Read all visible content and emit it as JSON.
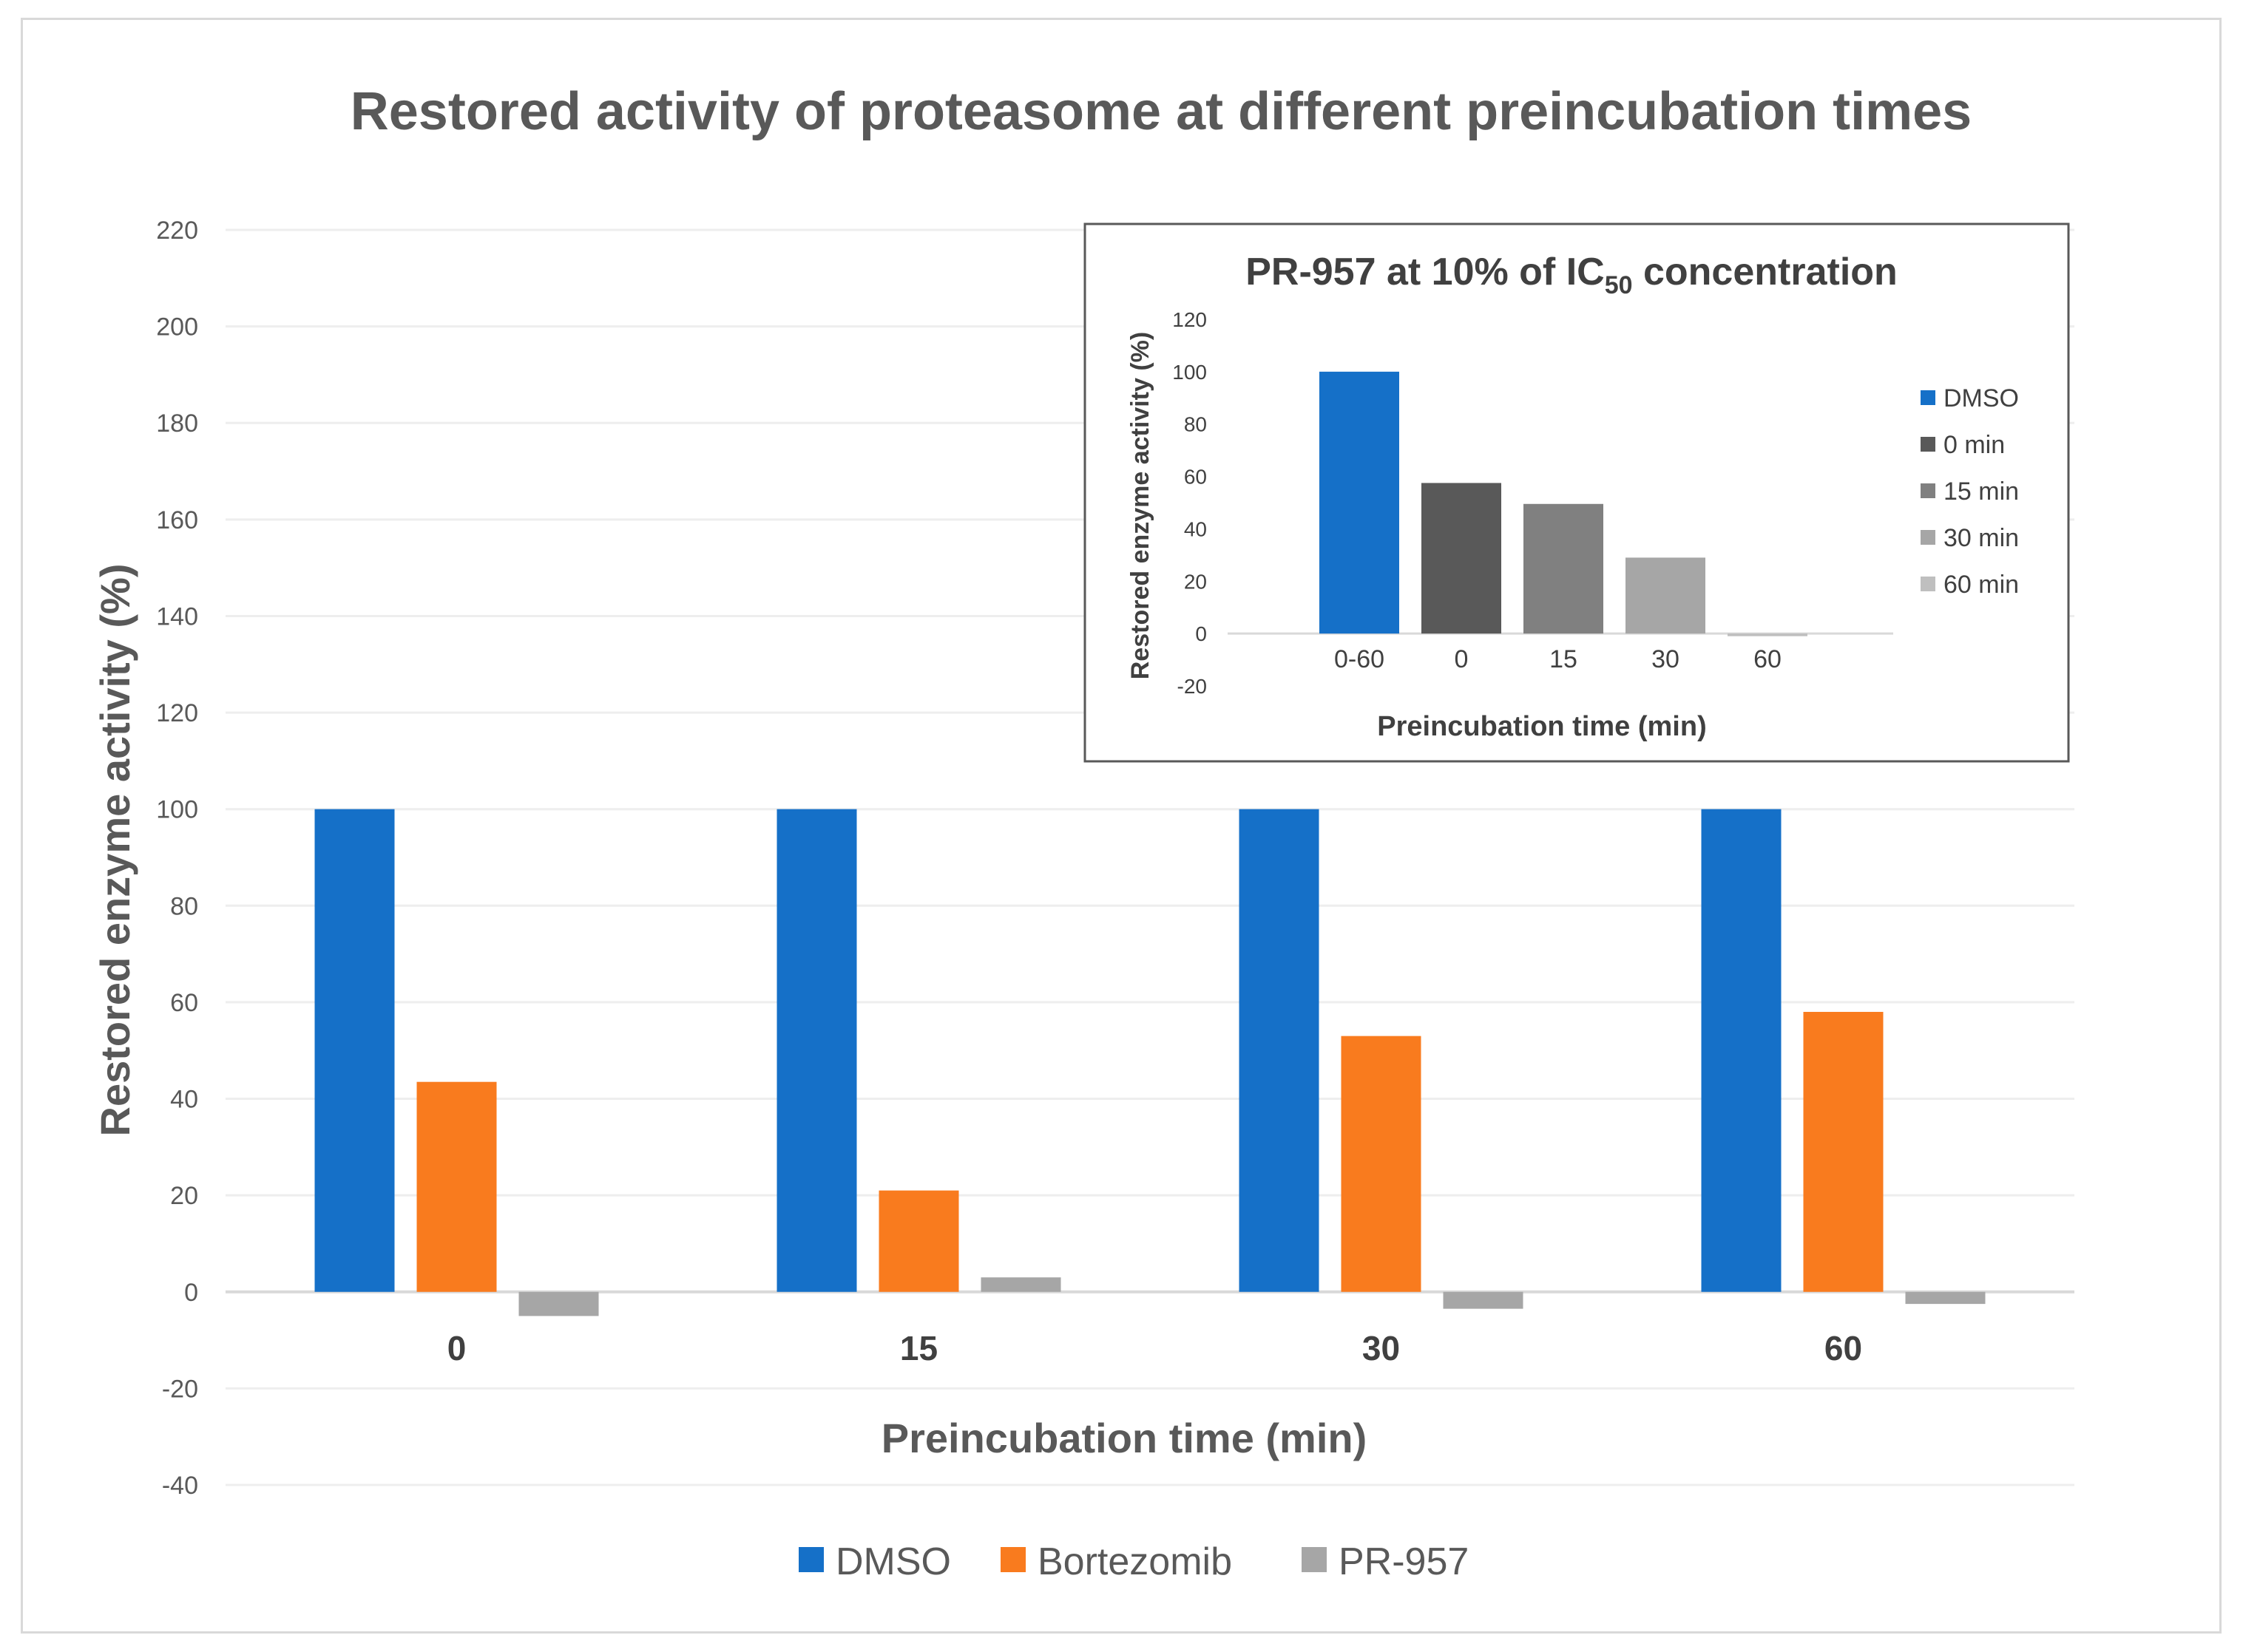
{
  "chart_data": [
    {
      "id": "main",
      "type": "bar",
      "title": "Restored activity of proteasome at different preincubation times",
      "xlabel": "Preincubation time (min)",
      "ylabel": "Restored enzyme activity (%)",
      "ylim": [
        -40,
        220
      ],
      "ytick_step": 20,
      "grid": true,
      "legend_position": "bottom",
      "categories": [
        "0",
        "15",
        "30",
        "60"
      ],
      "series": [
        {
          "name": "DMSO",
          "color": "#1570c8",
          "values": [
            100,
            100,
            100,
            100
          ]
        },
        {
          "name": "Bortezomib",
          "color": "#f97b1e",
          "values": [
            43.5,
            21,
            53,
            58
          ]
        },
        {
          "name": "PR-957",
          "color": "#a6a6a6",
          "values": [
            -5,
            3,
            -3.5,
            -2.5
          ]
        }
      ]
    },
    {
      "id": "inset",
      "type": "bar",
      "title_main": "PR-957 at 10% of IC",
      "title_sub": "50",
      "title_tail": " concentration",
      "xlabel": "Preincubation time (min)",
      "ylabel": "Restored enzyme activity (%)",
      "ylim": [
        -20,
        120
      ],
      "ytick_step": 20,
      "grid": false,
      "legend_position": "right",
      "categories": [
        "0-60",
        "0",
        "15",
        "30",
        "60"
      ],
      "bars": [
        {
          "name": "DMSO",
          "value": 100,
          "color": "#1570c8"
        },
        {
          "name": "0 min",
          "value": 57.5,
          "color": "#595959"
        },
        {
          "name": "15 min",
          "value": 49.5,
          "color": "#808080"
        },
        {
          "name": "30 min",
          "value": 29,
          "color": "#a6a6a6"
        },
        {
          "name": "60 min",
          "value": -1,
          "color": "#bfbfbf"
        }
      ]
    }
  ]
}
